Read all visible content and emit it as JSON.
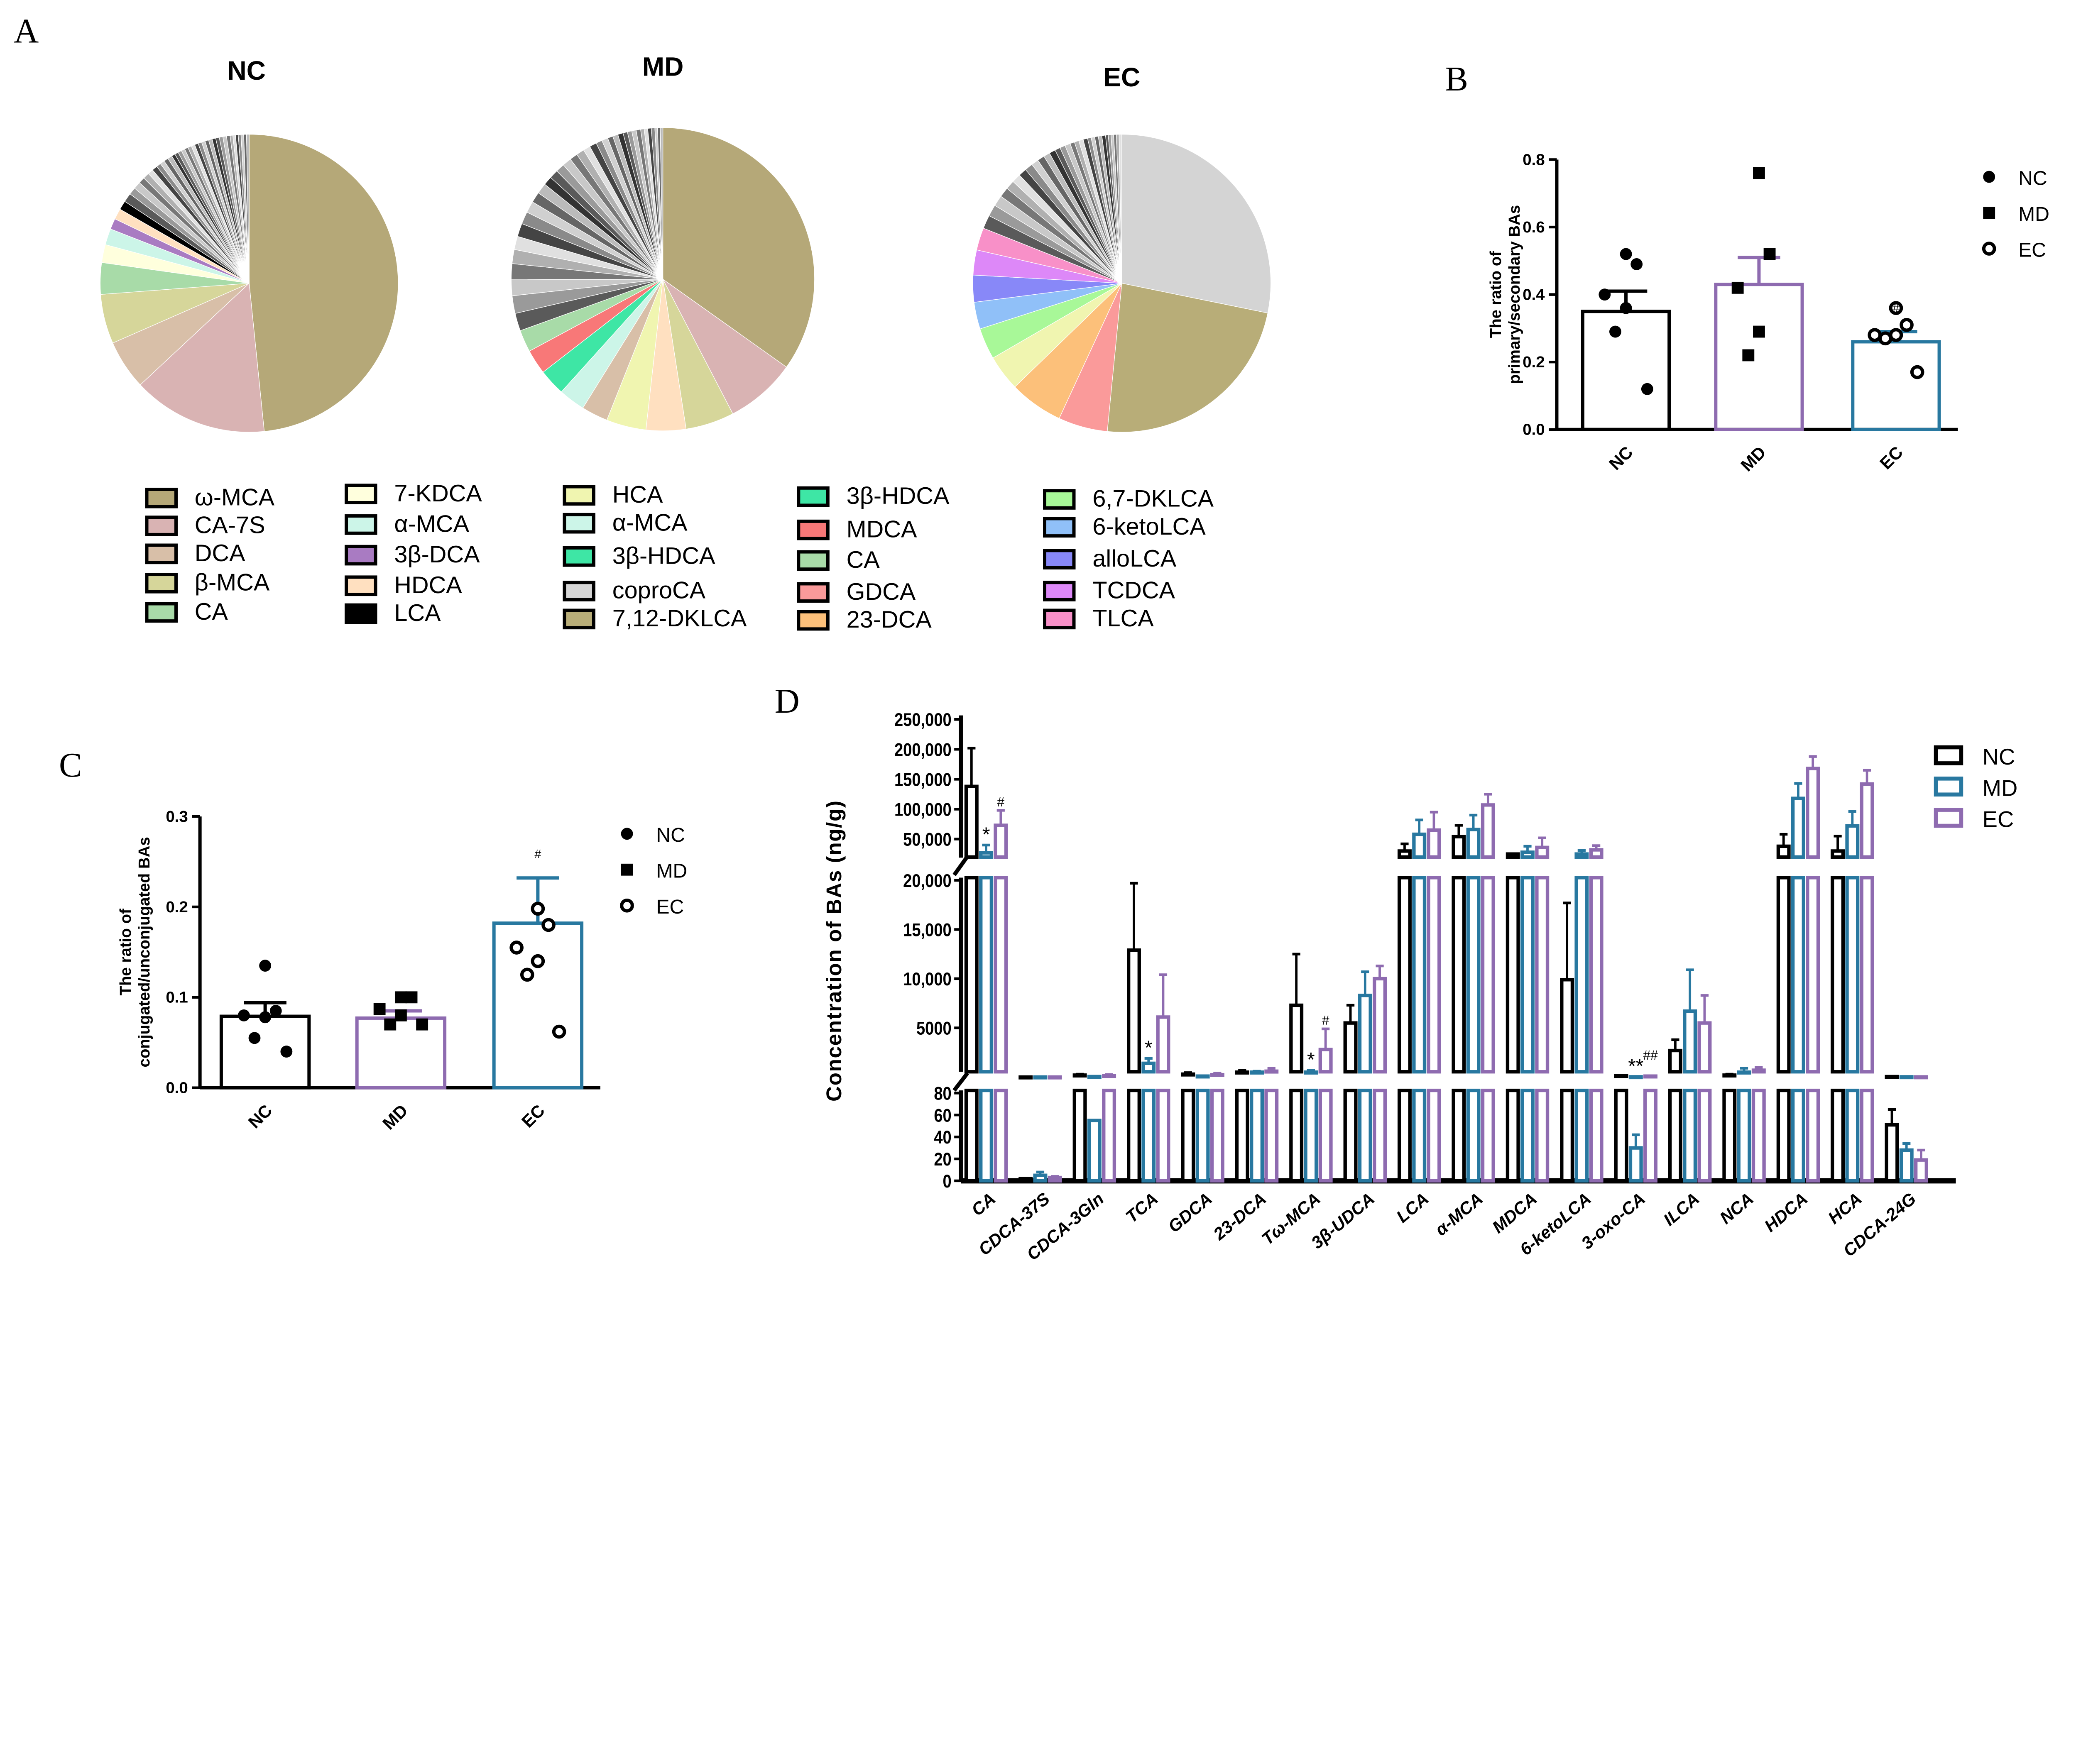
{
  "panel_labels": [
    "A",
    "B",
    "C",
    "D"
  ],
  "chart_data": [
    {
      "type": "pie",
      "id": "pies",
      "charts": [
        {
          "title": "NC",
          "slices": [
            {
              "name": "ω-MCA",
              "value": 49.5,
              "color": "#b5a878"
            },
            {
              "name": "CA-7S",
              "value": 15,
              "color": "#d9b3b3"
            },
            {
              "name": "DCA",
              "value": 5.5,
              "color": "#d8bfa8"
            },
            {
              "name": "β-MCA",
              "value": 5.5,
              "color": "#d6d69a"
            },
            {
              "name": "CA",
              "value": 3.5,
              "color": "#a8dba8"
            },
            {
              "name": "7-KDCA",
              "value": 2,
              "color": "#ffffdd"
            },
            {
              "name": "α-MCA",
              "value": 1.8,
              "color": "#ccf5e8"
            },
            {
              "name": "3β-DCA",
              "value": 1.2,
              "color": "#a97bc2"
            },
            {
              "name": "HDCA",
              "value": 1.2,
              "color": "#ffe0c0"
            },
            {
              "name": "LCA",
              "value": 1,
              "color": "#000000"
            }
          ],
          "unlabeled": [
            1,
            0.8,
            0.8,
            0.7,
            0.7,
            0.6,
            0.6,
            0.5,
            0.5,
            0.5,
            0.5,
            0.4,
            0.4,
            0.4,
            0.4,
            0.4,
            0.4,
            0.4,
            0.4,
            0.4,
            0.4,
            0.4,
            0.4,
            0.4,
            0.4,
            0.4,
            0.4,
            0.4,
            0.3,
            0.3,
            0.3,
            0.3,
            0.3,
            0.3,
            0.3
          ]
        },
        {
          "title": "MD",
          "slices": [
            {
              "name": "ω-MCA",
              "value": 37,
              "color": "#b5a878"
            },
            {
              "name": "CA-7S",
              "value": 8,
              "color": "#d9b3b3"
            },
            {
              "name": "β-MCA",
              "value": 5.5,
              "color": "#d6d69a"
            },
            {
              "name": "HDCA",
              "value": 4.5,
              "color": "#ffe0c0"
            },
            {
              "name": "HCA",
              "value": 4.5,
              "color": "#f0f5b0"
            },
            {
              "name": "DCA",
              "value": 3,
              "color": "#d8bfa8"
            },
            {
              "name": "α-MCA",
              "value": 3,
              "color": "#ccf5e8"
            },
            {
              "name": "3β-HDCA",
              "value": 3,
              "color": "#3ee6a5"
            },
            {
              "name": "MDCA",
              "value": 2.8,
              "color": "#f87878"
            },
            {
              "name": "CA",
              "value": 2.5,
              "color": "#a8dba8"
            }
          ],
          "unlabeled": [
            2,
            2,
            1.8,
            1.8,
            1.6,
            1.5,
            1.5,
            1.4,
            1.3,
            1.2,
            1.2,
            1,
            1,
            1,
            1,
            0.9,
            0.9,
            0.8,
            0.8,
            0.7,
            0.7,
            0.6,
            0.6,
            0.6,
            0.5,
            0.5,
            0.5,
            0.5,
            0.4,
            0.4,
            0.4,
            0.4,
            0.3,
            0.3,
            0.3
          ]
        },
        {
          "title": "EC",
          "slices": [
            {
              "name": "coproCA",
              "value": 29,
              "color": "#d4d4d4"
            },
            {
              "name": "7,12-DKLCA",
              "value": 24,
              "color": "#b8ad78"
            },
            {
              "name": "GDCA",
              "value": 5.5,
              "color": "#fa9a9a"
            },
            {
              "name": "23-DCA",
              "value": 6,
              "color": "#fcc07a"
            },
            {
              "name": "HCA",
              "value": 4,
              "color": "#f0f5b0"
            },
            {
              "name": "6,7-DKLCA",
              "value": 3.5,
              "color": "#a8f898"
            },
            {
              "name": "6-ketoLCA",
              "value": 3,
              "color": "#90c0f8"
            },
            {
              "name": "alloLCA",
              "value": 3,
              "color": "#8888f8"
            },
            {
              "name": "TCDCA",
              "value": 2.8,
              "color": "#dd88f8"
            },
            {
              "name": "TLCA",
              "value": 2.5,
              "color": "#f890c8"
            }
          ],
          "unlabeled": [
            1.5,
            1.3,
            1.2,
            1.1,
            1,
            1,
            0.9,
            0.9,
            0.8,
            0.8,
            0.7,
            0.7,
            0.6,
            0.6,
            0.6,
            0.5,
            0.5,
            0.5,
            0.5,
            0.4,
            0.4,
            0.4,
            0.4,
            0.4,
            0.3,
            0.3,
            0.3,
            0.3,
            0.3,
            0.3
          ]
        }
      ],
      "legend": [
        [
          {
            "name": "ω-MCA",
            "color": "#b5a878"
          },
          {
            "name": "CA-7S",
            "color": "#d9b3b3"
          },
          {
            "name": "DCA",
            "color": "#d8bfa8"
          },
          {
            "name": "β-MCA",
            "color": "#d6d69a"
          },
          {
            "name": "CA",
            "color": "#a8dba8"
          }
        ],
        [
          {
            "name": "7-KDCA",
            "color": "#ffffdd"
          },
          {
            "name": "α-MCA",
            "color": "#ccf5e8"
          },
          {
            "name": "3β-DCA",
            "color": "#a97bc2"
          },
          {
            "name": "HDCA",
            "color": "#ffe0c0"
          },
          {
            "name": "LCA",
            "color": "#000000"
          }
        ],
        [
          {
            "name": "HCA",
            "color": "#f0f5b0"
          },
          {
            "name": "α-MCA",
            "color": "#ccf5e8"
          },
          {
            "name": "3β-HDCA",
            "color": "#3ee6a5"
          },
          {
            "name": "coproCA",
            "color": "#d4d4d4"
          },
          {
            "name": "7,12-DKLCA",
            "color": "#b8ad78"
          }
        ],
        [
          {
            "name": "3β-HDCA",
            "color": "#3ee6a5"
          },
          {
            "name": "MDCA",
            "color": "#f87878"
          },
          {
            "name": "CA",
            "color": "#a8dba8"
          },
          {
            "name": "GDCA",
            "color": "#fa9a9a"
          },
          {
            "name": "23-DCA",
            "color": "#fcc07a"
          }
        ],
        [
          {
            "name": "6,7-DKLCA",
            "color": "#a8f898"
          },
          {
            "name": "6-ketoLCA",
            "color": "#90c0f8"
          },
          {
            "name": "alloLCA",
            "color": "#8888f8"
          },
          {
            "name": "TCDCA",
            "color": "#dd88f8"
          },
          {
            "name": "TLCA",
            "color": "#f890c8"
          }
        ]
      ]
    },
    {
      "type": "bar",
      "id": "B",
      "ylabel": [
        "The ratio of",
        "primary/secondary BAs"
      ],
      "ylim": [
        0,
        0.8
      ],
      "yticks": [
        "0.0",
        "0.2",
        "0.4",
        "0.6",
        "0.8"
      ],
      "categories": [
        "NC",
        "MD",
        "EC"
      ],
      "colors": [
        "#000000",
        "#8e6bb0",
        "#2878a0"
      ],
      "markers": [
        "filled-circle",
        "filled-square",
        "open-circle"
      ],
      "means": [
        0.35,
        0.43,
        0.26
      ],
      "sem_top": [
        0.41,
        0.51,
        0.29
      ],
      "points": [
        [
          0.52,
          0.49,
          0.4,
          0.36,
          0.29,
          0.12
        ],
        [
          0.76,
          0.52,
          0.42,
          0.29,
          0.22
        ],
        [
          0.36,
          0.31,
          0.28,
          0.28,
          0.27,
          0.17
        ]
      ],
      "annotations": [
        "",
        "",
        "#"
      ],
      "legend": [
        "NC",
        "MD",
        "EC"
      ]
    },
    {
      "type": "bar",
      "id": "C",
      "ylabel": [
        "The ratio of",
        "conjugated/unconjugated BAs"
      ],
      "ylim": [
        0,
        0.3
      ],
      "yticks": [
        "0.0",
        "0.1",
        "0.2",
        "0.3"
      ],
      "categories": [
        "NC",
        "MD",
        "EC"
      ],
      "colors": [
        "#000000",
        "#8e6bb0",
        "#2878a0"
      ],
      "markers": [
        "filled-circle",
        "filled-square",
        "open-circle"
      ],
      "means": [
        0.079,
        0.077,
        0.182
      ],
      "sem_top": [
        0.094,
        0.085,
        0.232
      ],
      "points": [
        [
          0.135,
          0.085,
          0.08,
          0.078,
          0.055,
          0.04
        ],
        [
          0.1,
          0.1,
          0.087,
          0.08,
          0.07,
          0.07
        ],
        [
          0.198,
          0.18,
          0.155,
          0.14,
          0.125,
          0.062
        ]
      ],
      "annotations": [
        "",
        "",
        "#"
      ],
      "legend": [
        "NC",
        "MD",
        "EC"
      ]
    },
    {
      "type": "bar",
      "id": "D",
      "ylabel": "Concentration of BAs (ng/g)",
      "segments": [
        {
          "range": [
            0,
            80
          ],
          "ticks": [
            0,
            20,
            40,
            60,
            80
          ],
          "labels": [
            "0",
            "20",
            "40",
            "60",
            "80"
          ]
        },
        {
          "range": [
            0,
            20000
          ],
          "ticks": [
            5000,
            10000,
            15000,
            20000
          ],
          "labels": [
            "5000",
            "10,000",
            "15,000",
            "20,000"
          ]
        },
        {
          "range": [
            20000,
            250000
          ],
          "ticks": [
            50000,
            100000,
            150000,
            200000,
            250000
          ],
          "labels": [
            "50,000",
            "100,000",
            "150,000",
            "200,000",
            "250,000"
          ]
        }
      ],
      "series": [
        {
          "name": "NC",
          "color": "#000000"
        },
        {
          "name": "MD",
          "color": "#2878a0"
        },
        {
          "name": "EC",
          "color": "#8e6bb0"
        }
      ],
      "categories": [
        "CA",
        "CDCA-37S",
        "CDCA-3Gln",
        "TCA",
        "GDCA",
        "23-DCA",
        "Tω-MCA",
        "3β-UDCA",
        "LCA",
        "α-MCA",
        "MDCA",
        "6-ketoLCA",
        "3-oxo-CA",
        "ILCA",
        "NCA",
        "HDCA",
        "HCA",
        "CDCA-24G"
      ],
      "values": [
        [
          138000,
          27000,
          73000
        ],
        [
          2,
          5,
          3
        ],
        [
          200,
          55,
          150
        ],
        [
          12900,
          1400,
          6100
        ],
        [
          300,
          100,
          250
        ],
        [
          500,
          500,
          600
        ],
        [
          7300,
          500,
          2800
        ],
        [
          5500,
          8300,
          10000
        ],
        [
          30000,
          58000,
          65000
        ],
        [
          54000,
          66000,
          107000
        ],
        [
          25000,
          28000,
          36000
        ],
        [
          9900,
          25000,
          32000
        ],
        [
          150,
          30,
          100
        ],
        [
          2700,
          6700,
          5500
        ],
        [
          200,
          500,
          700
        ],
        [
          38000,
          118000,
          168000
        ],
        [
          30000,
          72000,
          142000
        ],
        [
          51,
          28,
          19
        ]
      ],
      "error_top": [
        [
          202000,
          40000,
          98000
        ],
        [
          2,
          8,
          4
        ],
        [
          300,
          55,
          250
        ],
        [
          19700,
          1900,
          10400
        ],
        [
          450,
          100,
          400
        ],
        [
          700,
          600,
          900
        ],
        [
          12500,
          700,
          4900
        ],
        [
          7300,
          10700,
          11300
        ],
        [
          42000,
          82000,
          95000
        ],
        [
          73000,
          90000,
          125000
        ],
        [
          25000,
          38000,
          52000
        ],
        [
          17700,
          31000,
          39000
        ],
        [
          150,
          42,
          100
        ],
        [
          3800,
          10900,
          8300
        ],
        [
          300,
          900,
          1000
        ],
        [
          58000,
          143000,
          188000
        ],
        [
          55000,
          96000,
          165000
        ],
        [
          65,
          34,
          28
        ]
      ],
      "annotations": [
        {
          "category": "CA",
          "series": "MD",
          "text": "*"
        },
        {
          "category": "CA",
          "series": "EC",
          "text": "#"
        },
        {
          "category": "TCA",
          "series": "MD",
          "text": "*"
        },
        {
          "category": "Tω-MCA",
          "series": "MD",
          "text": "*"
        },
        {
          "category": "Tω-MCA",
          "series": "EC",
          "text": "#"
        },
        {
          "category": "3-oxo-CA",
          "series": "MD",
          "text": "**"
        },
        {
          "category": "3-oxo-CA",
          "series": "EC",
          "text": "##"
        }
      ],
      "legend": "top-right"
    }
  ]
}
